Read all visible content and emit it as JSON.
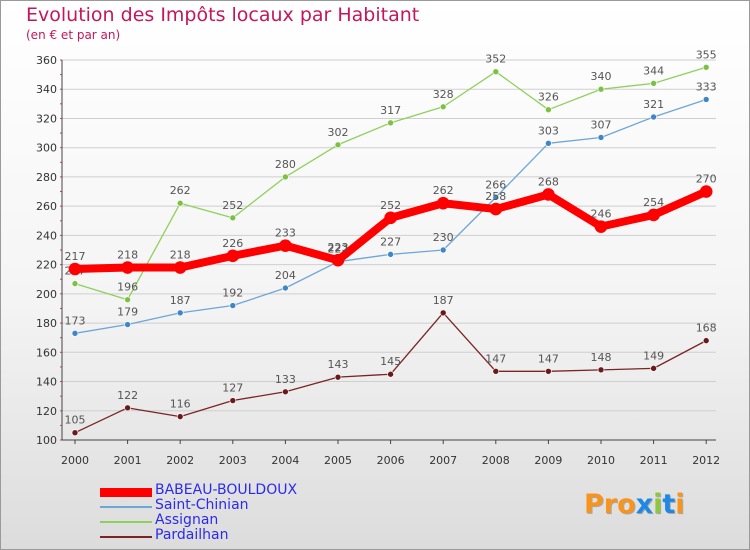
{
  "title": "Evolution des Impôts locaux par Habitant",
  "subtitle": "(en € et par an)",
  "brand": {
    "text": "Proxiti",
    "colors": [
      "#f7941d",
      "#f7941d",
      "#f7941d",
      "#1e88e5",
      "#8dc63f",
      "#1e88e5",
      "#f7941d"
    ]
  },
  "chart_data": {
    "type": "line",
    "title": "Evolution des Impôts locaux par Habitant",
    "subtitle": "(en € et par an)",
    "xlabel": "",
    "ylabel": "",
    "ylim": [
      100,
      360
    ],
    "yticks": [
      100,
      120,
      140,
      160,
      180,
      200,
      220,
      240,
      260,
      280,
      300,
      320,
      340,
      360
    ],
    "categories": [
      "2000",
      "2001",
      "2002",
      "2003",
      "2004",
      "2005",
      "2006",
      "2007",
      "2008",
      "2009",
      "2010",
      "2011",
      "2012"
    ],
    "grid": true,
    "legend_position": "bottom-left",
    "series": [
      {
        "name": "Assignan",
        "color": "#8fd05a",
        "marker": "#7cc242",
        "width": 1.3,
        "values": [
          207,
          196,
          262,
          252,
          280,
          302,
          317,
          328,
          352,
          326,
          340,
          344,
          355
        ]
      },
      {
        "name": "Saint-Chinian",
        "color": "#6ea6d8",
        "marker": "#3f86c9",
        "width": 1.3,
        "values": [
          173,
          179,
          187,
          192,
          204,
          222,
          227,
          230,
          266,
          303,
          307,
          321,
          333
        ]
      },
      {
        "name": "Pardailhan",
        "color": "#7a2424",
        "marker": "#6a1a1a",
        "width": 1.3,
        "values": [
          105,
          122,
          116,
          127,
          133,
          143,
          145,
          187,
          147,
          147,
          148,
          149,
          168
        ]
      },
      {
        "name": "BABEAU-BOULDOUX",
        "color": "#ff0000",
        "marker": "#ff0000",
        "width": 8,
        "values": [
          217,
          218,
          218,
          226,
          233,
          223,
          252,
          262,
          258,
          268,
          246,
          254,
          270
        ]
      }
    ],
    "legend_order": [
      "BABEAU-BOULDOUX",
      "Saint-Chinian",
      "Assignan",
      "Pardailhan"
    ]
  }
}
